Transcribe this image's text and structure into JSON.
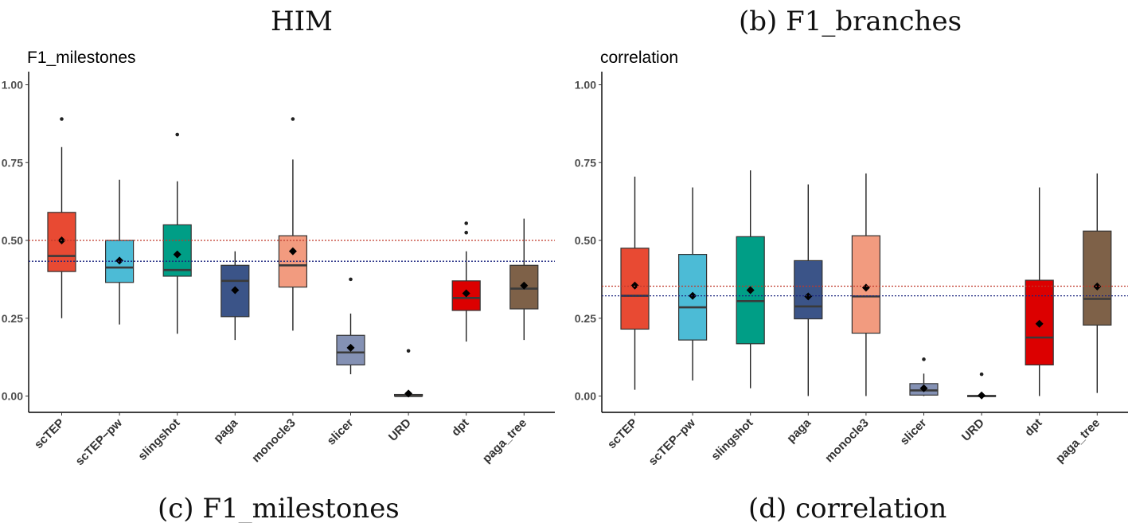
{
  "captions": {
    "top_left": "HIM",
    "top_right": "(b) F1_branches",
    "bottom_left": "(c) F1_milestones",
    "bottom_right": "(d) correlation"
  },
  "chart_data": [
    {
      "type": "boxplot",
      "title": "F1_milestones",
      "xlabel": "",
      "ylabel": "",
      "ylim": [
        0,
        1
      ],
      "yticks": [
        0,
        0.25,
        0.5,
        0.75,
        1
      ],
      "ytick_labels": [
        "0.00",
        "0.25",
        "0.50",
        "0.75",
        "1.00"
      ],
      "reference_lines": [
        {
          "value": 0.5,
          "color": "#c0392b",
          "style": "dotted"
        },
        {
          "value": 0.433,
          "color": "#1a237e",
          "style": "dotted"
        }
      ],
      "categories": [
        "scTEP",
        "scTEP−pw",
        "slingshot",
        "paga",
        "monocle3",
        "slicer",
        "URD",
        "dpt",
        "paga_tree"
      ],
      "boxes": [
        {
          "name": "scTEP",
          "color": "#e84a33",
          "whisker_low": 0.25,
          "q1": 0.4,
          "median": 0.45,
          "q3": 0.59,
          "whisker_high": 0.8,
          "mean": 0.5,
          "outliers": [
            0.89
          ]
        },
        {
          "name": "scTEP−pw",
          "color": "#4cbbd6",
          "whisker_low": 0.23,
          "q1": 0.365,
          "median": 0.413,
          "q3": 0.5,
          "whisker_high": 0.695,
          "mean": 0.435,
          "outliers": []
        },
        {
          "name": "slingshot",
          "color": "#009e86",
          "whisker_low": 0.2,
          "q1": 0.385,
          "median": 0.405,
          "q3": 0.55,
          "whisker_high": 0.69,
          "mean": 0.455,
          "outliers": [
            0.84
          ]
        },
        {
          "name": "paga",
          "color": "#3b5488",
          "whisker_low": 0.18,
          "q1": 0.255,
          "median": 0.37,
          "q3": 0.42,
          "whisker_high": 0.465,
          "mean": 0.34,
          "outliers": []
        },
        {
          "name": "monocle3",
          "color": "#f29b7f",
          "whisker_low": 0.21,
          "q1": 0.35,
          "median": 0.42,
          "q3": 0.515,
          "whisker_high": 0.76,
          "mean": 0.465,
          "outliers": [
            0.89
          ]
        },
        {
          "name": "slicer",
          "color": "#8491b4",
          "whisker_low": 0.07,
          "q1": 0.1,
          "median": 0.14,
          "q3": 0.195,
          "whisker_high": 0.265,
          "mean": 0.155,
          "outliers": [
            0.375
          ]
        },
        {
          "name": "URD",
          "color": "#7e6148",
          "whisker_low": 0.0,
          "q1": 0.0,
          "median": 0.0,
          "q3": 0.005,
          "whisker_high": 0.005,
          "mean": 0.008,
          "outliers": [
            0.145
          ]
        },
        {
          "name": "dpt",
          "color": "#dc0000",
          "whisker_low": 0.175,
          "q1": 0.275,
          "median": 0.315,
          "q3": 0.37,
          "whisker_high": 0.465,
          "mean": 0.33,
          "outliers": [
            0.525,
            0.555
          ]
        },
        {
          "name": "paga_tree",
          "color": "#7e6148",
          "whisker_low": 0.18,
          "q1": 0.28,
          "median": 0.345,
          "q3": 0.42,
          "whisker_high": 0.57,
          "mean": 0.355,
          "outliers": []
        }
      ]
    },
    {
      "type": "boxplot",
      "title": "correlation",
      "xlabel": "",
      "ylabel": "",
      "ylim": [
        0,
        1
      ],
      "yticks": [
        0,
        0.25,
        0.5,
        0.75,
        1
      ],
      "ytick_labels": [
        "0.00",
        "0.25",
        "0.50",
        "0.75",
        "1.00"
      ],
      "reference_lines": [
        {
          "value": 0.353,
          "color": "#c0392b",
          "style": "dotted"
        },
        {
          "value": 0.322,
          "color": "#1a237e",
          "style": "dotted"
        }
      ],
      "categories": [
        "scTEP",
        "scTEP−pw",
        "slingshot",
        "paga",
        "monocle3",
        "slicer",
        "URD",
        "dpt",
        "paga_tree"
      ],
      "boxes": [
        {
          "name": "scTEP",
          "color": "#e84a33",
          "whisker_low": 0.02,
          "q1": 0.215,
          "median": 0.322,
          "q3": 0.475,
          "whisker_high": 0.705,
          "mean": 0.355,
          "outliers": []
        },
        {
          "name": "scTEP−pw",
          "color": "#4cbbd6",
          "whisker_low": 0.05,
          "q1": 0.18,
          "median": 0.285,
          "q3": 0.455,
          "whisker_high": 0.67,
          "mean": 0.322,
          "outliers": []
        },
        {
          "name": "slingshot",
          "color": "#009e86",
          "whisker_low": 0.025,
          "q1": 0.168,
          "median": 0.305,
          "q3": 0.512,
          "whisker_high": 0.725,
          "mean": 0.34,
          "outliers": []
        },
        {
          "name": "paga",
          "color": "#3b5488",
          "whisker_low": 0.0,
          "q1": 0.248,
          "median": 0.288,
          "q3": 0.435,
          "whisker_high": 0.68,
          "mean": 0.32,
          "outliers": []
        },
        {
          "name": "monocle3",
          "color": "#f29b7f",
          "whisker_low": 0.0,
          "q1": 0.202,
          "median": 0.32,
          "q3": 0.515,
          "whisker_high": 0.715,
          "mean": 0.348,
          "outliers": []
        },
        {
          "name": "slicer",
          "color": "#8491b4",
          "whisker_low": 0.0,
          "q1": 0.003,
          "median": 0.018,
          "q3": 0.04,
          "whisker_high": 0.072,
          "mean": 0.025,
          "outliers": [
            0.118
          ]
        },
        {
          "name": "URD",
          "color": "#7e6148",
          "whisker_low": 0.0,
          "q1": 0.0,
          "median": 0.0,
          "q3": 0.002,
          "whisker_high": 0.002,
          "mean": 0.002,
          "outliers": [
            0.07
          ]
        },
        {
          "name": "dpt",
          "color": "#dc0000",
          "whisker_low": 0.0,
          "q1": 0.1,
          "median": 0.188,
          "q3": 0.372,
          "whisker_high": 0.67,
          "mean": 0.232,
          "outliers": []
        },
        {
          "name": "paga_tree",
          "color": "#7e6148",
          "whisker_low": 0.01,
          "q1": 0.228,
          "median": 0.312,
          "q3": 0.53,
          "whisker_high": 0.715,
          "mean": 0.352,
          "outliers": []
        }
      ]
    }
  ]
}
